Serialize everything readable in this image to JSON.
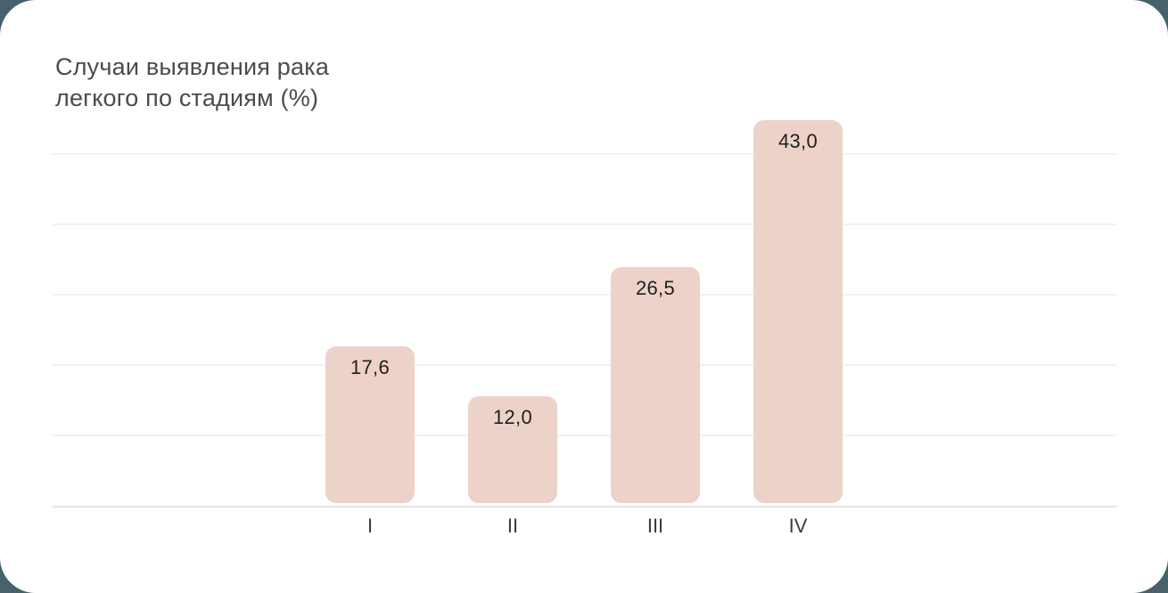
{
  "page": {
    "background_color": "#47626c",
    "card_color": "#ffffff"
  },
  "chart_data": {
    "type": "bar",
    "title": "Случаи выявления рака\nлегкого по стадиям (%)",
    "categories": [
      "I",
      "II",
      "III",
      "IV"
    ],
    "values": [
      17.6,
      12.0,
      26.5,
      43.0
    ],
    "value_labels": [
      "17,6",
      "12,0",
      "26,5",
      "43,0"
    ],
    "xlabel": "",
    "ylabel": "",
    "ylim": [
      0,
      45
    ],
    "grid": true,
    "legend": false,
    "bar_color": "#ecd2c9",
    "value_label_color": "#1f1f1f",
    "category_label_color": "#3c3c3c",
    "gridline_color": "#f2f2f2",
    "axis_line_color": "#e3e3e3",
    "title_color": "#4b4b4b"
  }
}
